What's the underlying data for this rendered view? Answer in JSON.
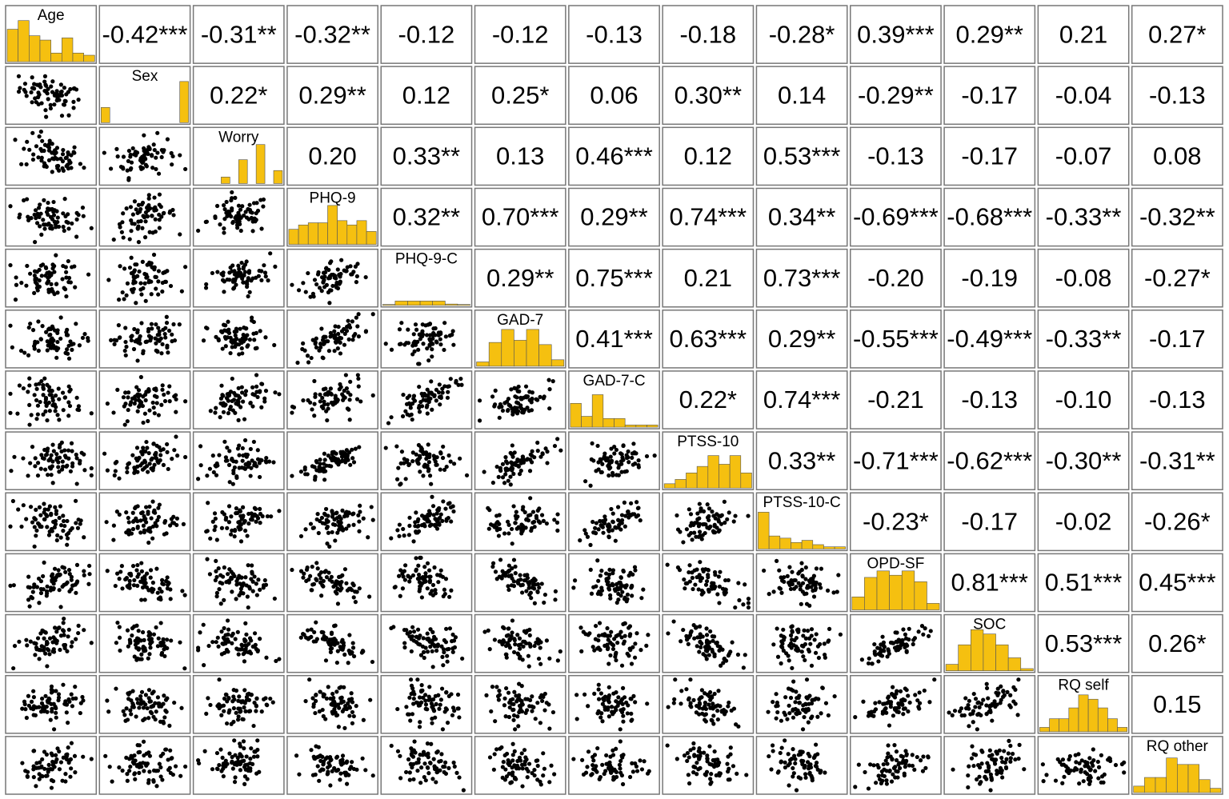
{
  "chart_data": {
    "type": "pairs",
    "variables": [
      "Age",
      "Sex",
      "Worry",
      "PHQ-9",
      "PHQ-9-C",
      "GAD-7",
      "GAD-7-C",
      "PTSS-10",
      "PTSS-10-C",
      "OPD-SF",
      "SOC",
      "RQ self",
      "RQ other"
    ],
    "correlations": [
      [
        -0.42,
        -0.31,
        -0.32,
        -0.12,
        -0.12,
        -0.13,
        -0.18,
        -0.28,
        0.39,
        0.29,
        0.21,
        0.27
      ],
      [
        0.22,
        0.29,
        0.12,
        0.25,
        0.06,
        0.3,
        0.14,
        -0.29,
        -0.17,
        -0.04,
        -0.13
      ],
      [
        0.2,
        0.33,
        0.13,
        0.46,
        0.12,
        0.53,
        -0.13,
        -0.17,
        -0.07,
        0.08
      ],
      [
        0.32,
        0.7,
        0.29,
        0.74,
        0.34,
        -0.69,
        -0.68,
        -0.33,
        -0.32
      ],
      [
        0.29,
        0.75,
        0.21,
        0.73,
        -0.2,
        -0.19,
        -0.08,
        -0.27
      ],
      [
        0.41,
        0.63,
        0.29,
        -0.55,
        -0.49,
        -0.33,
        -0.17
      ],
      [
        0.22,
        0.74,
        -0.21,
        -0.13,
        -0.1,
        -0.13
      ],
      [
        0.33,
        -0.71,
        -0.62,
        -0.3,
        -0.31
      ],
      [
        -0.23,
        -0.17,
        -0.02,
        -0.26
      ],
      [
        0.81,
        0.51,
        0.45
      ],
      [
        0.53,
        0.26
      ],
      [
        0.15
      ]
    ],
    "value_labels": [
      [
        "-0.42***",
        "-0.31**",
        "-0.32**",
        "-0.12",
        "-0.12",
        "-0.13",
        "-0.18",
        "-0.28*",
        "0.39***",
        "0.29**",
        "0.21",
        "0.27*"
      ],
      [
        "0.22*",
        "0.29**",
        "0.12",
        "0.25*",
        "0.06",
        "0.30**",
        "0.14",
        "-0.29**",
        "-0.17",
        "-0.04",
        "-0.13"
      ],
      [
        "0.20",
        "0.33**",
        "0.13",
        "0.46***",
        "0.12",
        "0.53***",
        "-0.13",
        "-0.17",
        "-0.07",
        "0.08"
      ],
      [
        "0.32**",
        "0.70***",
        "0.29**",
        "0.74***",
        "0.34**",
        "-0.69***",
        "-0.68***",
        "-0.33**",
        "-0.32**"
      ],
      [
        "0.29**",
        "0.75***",
        "0.21",
        "0.73***",
        "-0.20",
        "-0.19",
        "-0.08",
        "-0.27*"
      ],
      [
        "0.41***",
        "0.63***",
        "0.29**",
        "-0.55***",
        "-0.49***",
        "-0.33**",
        "-0.17"
      ],
      [
        "0.22*",
        "0.74***",
        "-0.21",
        "-0.13",
        "-0.10",
        "-0.13"
      ],
      [
        "0.33**",
        "-0.71***",
        "-0.62***",
        "-0.30**",
        "-0.31**"
      ],
      [
        "-0.23*",
        "-0.17",
        "-0.02",
        "-0.26*"
      ],
      [
        "0.81***",
        "0.51***",
        "0.45***"
      ],
      [
        "0.53***",
        "0.26*"
      ],
      [
        "0.15"
      ]
    ],
    "histograms": [
      [
        0.75,
        0.95,
        0.6,
        0.5,
        0.2,
        0.55,
        0.2,
        0.15
      ],
      [
        0.35,
        0,
        0,
        0,
        0,
        0,
        0,
        0,
        0,
        0.95
      ],
      [
        0,
        0,
        0,
        0.15,
        0,
        0.55,
        0,
        0.9,
        0,
        0.3
      ],
      [
        0.35,
        0.45,
        0.5,
        0.5,
        0.9,
        0.55,
        0.45,
        0.55,
        0.3
      ],
      [
        0.02,
        0.1,
        0.1,
        0.1,
        0.1,
        0.03,
        0.02
      ],
      [
        0.1,
        0.55,
        0.85,
        0.6,
        0.85,
        0.5,
        0.15
      ],
      [
        0.55,
        0.25,
        0.75,
        0.2,
        0.2,
        0.05,
        0.05,
        0.05
      ],
      [
        0.1,
        0.2,
        0.35,
        0.5,
        0.75,
        0.55,
        0.75,
        0.35
      ],
      [
        0.85,
        0.3,
        0.25,
        0.15,
        0.2,
        0.1,
        0.05,
        0.05
      ],
      [
        0.3,
        0.75,
        0.9,
        0.8,
        0.9,
        0.65,
        0.15
      ],
      [
        0.15,
        0.6,
        0.95,
        0.85,
        0.6,
        0.3,
        0.05
      ],
      [
        0.1,
        0.3,
        0.3,
        0.55,
        0.85,
        0.75,
        0.55,
        0.3,
        0.1
      ],
      [
        0.15,
        0.35,
        0.35,
        0.8,
        0.65,
        0.65,
        0.3,
        0.1
      ]
    ],
    "hist_ylim": [
      0,
      1
    ],
    "hist_color": "#f5c010",
    "point_color": "#000000"
  }
}
